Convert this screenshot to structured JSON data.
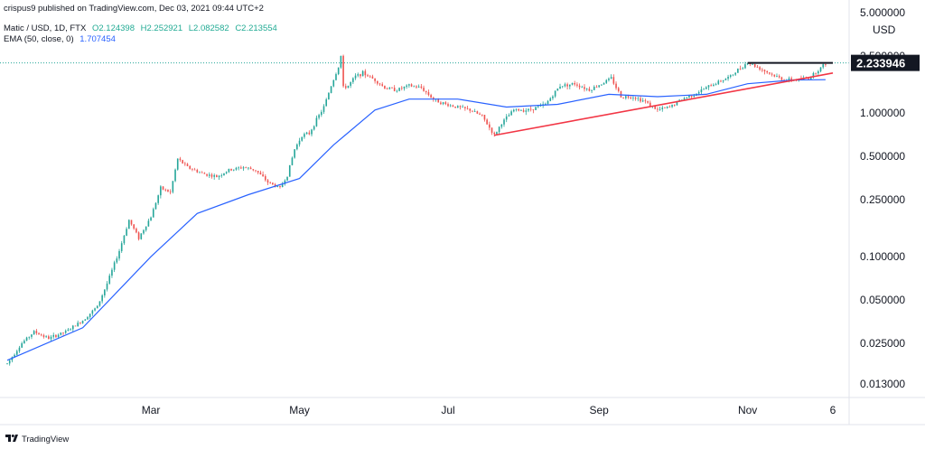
{
  "header": {
    "publisher": "crispus9 published on TradingView.com, Dec 03, 2021 09:44 UTC+2",
    "symbol": "Matic / USD, 1D, FTX",
    "open": "O2.124398",
    "high": "H2.252921",
    "low": "L2.082582",
    "close": "C2.213554",
    "ema_label": "EMA (50, close, 0)",
    "ema_value": "1.707454"
  },
  "footer": {
    "brand": "TradingView"
  },
  "chart_data": {
    "type": "candlestick",
    "scale": "log",
    "currency_label": "USD",
    "y_ticks": [
      5.0,
      2.5,
      1.0,
      0.5,
      0.25,
      0.1,
      0.05,
      0.025,
      0.013
    ],
    "y_tick_labels": [
      "5.000000",
      "2.500000",
      "1.000000",
      "0.500000",
      "0.250000",
      "0.100000",
      "0.050000",
      "0.025000",
      "0.013000"
    ],
    "x_ticks": [
      "2021-03-01",
      "2021-05-01",
      "2021-07-01",
      "2021-09-01",
      "2021-11-01",
      "2021-12-06"
    ],
    "x_tick_labels": [
      "Mar",
      "May",
      "Jul",
      "Sep",
      "Nov",
      "6"
    ],
    "last_price": 2.233946,
    "last_price_label": "2.233946",
    "price_series": [
      [
        "2021-01-01",
        0.018
      ],
      [
        "2021-01-07",
        0.025
      ],
      [
        "2021-01-12",
        0.03
      ],
      [
        "2021-01-18",
        0.027
      ],
      [
        "2021-01-25",
        0.03
      ],
      [
        "2021-02-01",
        0.036
      ],
      [
        "2021-02-07",
        0.045
      ],
      [
        "2021-02-11",
        0.065
      ],
      [
        "2021-02-16",
        0.11
      ],
      [
        "2021-02-20",
        0.18
      ],
      [
        "2021-02-24",
        0.135
      ],
      [
        "2021-03-01",
        0.19
      ],
      [
        "2021-03-05",
        0.3
      ],
      [
        "2021-03-09",
        0.28
      ],
      [
        "2021-03-12",
        0.48
      ],
      [
        "2021-03-16",
        0.42
      ],
      [
        "2021-03-22",
        0.38
      ],
      [
        "2021-03-28",
        0.36
      ],
      [
        "2021-04-02",
        0.4
      ],
      [
        "2021-04-08",
        0.42
      ],
      [
        "2021-04-13",
        0.4
      ],
      [
        "2021-04-18",
        0.33
      ],
      [
        "2021-04-23",
        0.3
      ],
      [
        "2021-04-26",
        0.37
      ],
      [
        "2021-04-29",
        0.56
      ],
      [
        "2021-05-02",
        0.7
      ],
      [
        "2021-05-05",
        0.72
      ],
      [
        "2021-05-08",
        0.9
      ],
      [
        "2021-05-11",
        1.1
      ],
      [
        "2021-05-14",
        1.55
      ],
      [
        "2021-05-17",
        2.1
      ],
      [
        "2021-05-18",
        2.5
      ],
      [
        "2021-05-19",
        1.5
      ],
      [
        "2021-05-21",
        1.55
      ],
      [
        "2021-05-24",
        1.8
      ],
      [
        "2021-05-27",
        1.9
      ],
      [
        "2021-06-01",
        1.7
      ],
      [
        "2021-06-05",
        1.5
      ],
      [
        "2021-06-10",
        1.45
      ],
      [
        "2021-06-15",
        1.55
      ],
      [
        "2021-06-20",
        1.5
      ],
      [
        "2021-06-25",
        1.25
      ],
      [
        "2021-06-30",
        1.15
      ],
      [
        "2021-07-05",
        1.1
      ],
      [
        "2021-07-10",
        1.05
      ],
      [
        "2021-07-15",
        0.95
      ],
      [
        "2021-07-20",
        0.7
      ],
      [
        "2021-07-23",
        0.85
      ],
      [
        "2021-07-28",
        1.05
      ],
      [
        "2021-08-03",
        1.05
      ],
      [
        "2021-08-10",
        1.15
      ],
      [
        "2021-08-16",
        1.55
      ],
      [
        "2021-08-22",
        1.6
      ],
      [
        "2021-08-28",
        1.45
      ],
      [
        "2021-09-02",
        1.6
      ],
      [
        "2021-09-06",
        1.75
      ],
      [
        "2021-09-10",
        1.3
      ],
      [
        "2021-09-15",
        1.3
      ],
      [
        "2021-09-20",
        1.2
      ],
      [
        "2021-09-25",
        1.05
      ],
      [
        "2021-09-30",
        1.1
      ],
      [
        "2021-10-05",
        1.25
      ],
      [
        "2021-10-10",
        1.35
      ],
      [
        "2021-10-15",
        1.5
      ],
      [
        "2021-10-20",
        1.65
      ],
      [
        "2021-10-25",
        1.8
      ],
      [
        "2021-10-28",
        2.0
      ],
      [
        "2021-11-01",
        2.25
      ],
      [
        "2021-11-06",
        2.05
      ],
      [
        "2021-11-11",
        1.85
      ],
      [
        "2021-11-16",
        1.7
      ],
      [
        "2021-11-21",
        1.7
      ],
      [
        "2021-11-26",
        1.75
      ],
      [
        "2021-11-30",
        2.0
      ],
      [
        "2021-12-03",
        2.213554
      ]
    ],
    "ema_series": [
      [
        "2021-01-01",
        0.019
      ],
      [
        "2021-02-01",
        0.032
      ],
      [
        "2021-03-01",
        0.1
      ],
      [
        "2021-03-20",
        0.2
      ],
      [
        "2021-04-10",
        0.27
      ],
      [
        "2021-05-01",
        0.35
      ],
      [
        "2021-05-15",
        0.6
      ],
      [
        "2021-06-01",
        1.05
      ],
      [
        "2021-06-15",
        1.25
      ],
      [
        "2021-07-05",
        1.25
      ],
      [
        "2021-07-25",
        1.1
      ],
      [
        "2021-08-15",
        1.15
      ],
      [
        "2021-09-05",
        1.35
      ],
      [
        "2021-09-25",
        1.3
      ],
      [
        "2021-10-15",
        1.35
      ],
      [
        "2021-11-01",
        1.6
      ],
      [
        "2021-11-20",
        1.7
      ],
      [
        "2021-12-03",
        1.707454
      ]
    ],
    "trendlines": [
      {
        "kind": "support",
        "color": "#f23645",
        "start": [
          "2021-07-20",
          0.7
        ],
        "end": [
          "2021-12-06",
          1.9
        ]
      },
      {
        "kind": "resistance",
        "color": "#131722",
        "start": [
          "2021-11-01",
          2.233946
        ],
        "end": [
          "2021-12-06",
          2.233946
        ]
      }
    ],
    "colors": {
      "up": "#26a69a",
      "down": "#ef5350",
      "ema": "#2962ff",
      "last_dotted": "#26a69a",
      "axis_text": "#131722"
    },
    "grid": false
  }
}
